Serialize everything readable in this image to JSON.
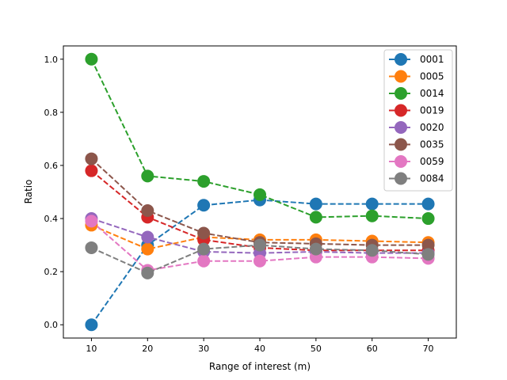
{
  "chart_data": {
    "type": "line",
    "title": "",
    "xlabel": "Range of interest (m)",
    "ylabel": "Ratio",
    "xlim": [
      5,
      75
    ],
    "ylim": [
      -0.05,
      1.05
    ],
    "xticks": [
      10,
      20,
      30,
      40,
      50,
      60,
      70
    ],
    "yticks": [
      0.0,
      0.2,
      0.4,
      0.6,
      0.8,
      1.0
    ],
    "ytick_labels": [
      "0.0",
      "0.2",
      "0.4",
      "0.6",
      "0.8",
      "1.0"
    ],
    "grid": false,
    "legend_position": "top-right",
    "x": [
      10,
      20,
      30,
      40,
      50,
      60,
      70
    ],
    "series": [
      {
        "name": "0001",
        "color": "#1f77b4",
        "values": [
          0.0,
          0.3,
          0.45,
          0.47,
          0.455,
          0.455,
          0.455
        ]
      },
      {
        "name": "0005",
        "color": "#ff7f0e",
        "values": [
          0.375,
          0.285,
          0.33,
          0.32,
          0.32,
          0.315,
          0.31
        ]
      },
      {
        "name": "0014",
        "color": "#2ca02c",
        "values": [
          1.0,
          0.56,
          0.54,
          0.49,
          0.405,
          0.41,
          0.4
        ]
      },
      {
        "name": "0019",
        "color": "#d62728",
        "values": [
          0.58,
          0.405,
          0.32,
          0.29,
          0.28,
          0.28,
          0.28
        ]
      },
      {
        "name": "0020",
        "color": "#9467bd",
        "values": [
          0.4,
          0.33,
          0.275,
          0.27,
          0.275,
          0.27,
          0.27
        ]
      },
      {
        "name": "0035",
        "color": "#8c564b",
        "values": [
          0.625,
          0.43,
          0.345,
          0.31,
          0.305,
          0.3,
          0.3
        ]
      },
      {
        "name": "0059",
        "color": "#e377c2",
        "values": [
          0.39,
          0.205,
          0.24,
          0.24,
          0.255,
          0.255,
          0.25
        ]
      },
      {
        "name": "0084",
        "color": "#7f7f7f",
        "values": [
          0.29,
          0.195,
          0.285,
          0.3,
          0.285,
          0.28,
          0.265
        ]
      }
    ]
  }
}
